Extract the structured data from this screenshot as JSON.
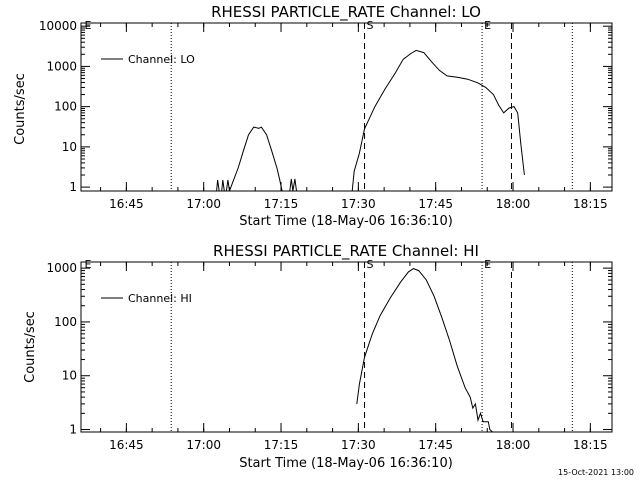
{
  "footer_date": "15-Oct-2021 13:00",
  "chart_data": [
    {
      "type": "line",
      "title": "RHESSI PARTICLE_RATE Channel: LO",
      "xlabel": "Start Time (18-May-06 16:36:10)",
      "ylabel": "Counts/sec",
      "yscale": "log",
      "x_unit": "minutes after 16:36:10",
      "xlim": [
        0,
        103
      ],
      "ylim": [
        0.8,
        12000
      ],
      "x_ticks": [
        {
          "t": 8.8,
          "label": "16:45"
        },
        {
          "t": 23.8,
          "label": "17:00"
        },
        {
          "t": 38.8,
          "label": "17:15"
        },
        {
          "t": 53.8,
          "label": "17:30"
        },
        {
          "t": 68.8,
          "label": "17:45"
        },
        {
          "t": 83.8,
          "label": "18:00"
        },
        {
          "t": 98.8,
          "label": "18:15"
        }
      ],
      "y_ticks": [
        {
          "v": 1,
          "label": "1"
        },
        {
          "v": 10,
          "label": "10"
        },
        {
          "v": 100,
          "label": "100"
        },
        {
          "v": 1000,
          "label": "1000"
        },
        {
          "v": 10000,
          "label": "10000"
        }
      ],
      "legend": {
        "label": "Channel: LO",
        "position": "top-left"
      },
      "markers": [
        {
          "label": "E",
          "t": 0.3,
          "style": "none"
        },
        {
          "label": "",
          "t": 17.5,
          "style": "dotted"
        },
        {
          "label": "S",
          "t": 55.0,
          "style": "dashed"
        },
        {
          "label": "E",
          "t": 77.8,
          "style": "dotted"
        },
        {
          "label": "",
          "t": 83.5,
          "style": "dashed"
        },
        {
          "label": "",
          "t": 95.3,
          "style": "dotted"
        }
      ],
      "series": [
        {
          "name": "Channel: LO",
          "segments": [
            [
              [
                26.3,
                0.8
              ],
              [
                26.5,
                1.5
              ],
              [
                26.8,
                0.8
              ]
            ],
            [
              [
                27.3,
                0.8
              ],
              [
                27.5,
                1.5
              ],
              [
                27.8,
                0.8
              ]
            ],
            [
              [
                28.2,
                0.8
              ],
              [
                28.5,
                1.5
              ],
              [
                28.8,
                0.8
              ],
              [
                29.3,
                1.2
              ],
              [
                30.5,
                3
              ],
              [
                31.5,
                8
              ],
              [
                32.5,
                20
              ],
              [
                33.5,
                31
              ],
              [
                34.5,
                29
              ],
              [
                35.0,
                31
              ],
              [
                36.0,
                20
              ],
              [
                37.0,
                8
              ],
              [
                38.0,
                3
              ],
              [
                38.5,
                1.6
              ],
              [
                39.0,
                0.8
              ]
            ],
            [
              [
                40.5,
                0.8
              ],
              [
                40.8,
                1.6
              ],
              [
                41.1,
                0.8
              ],
              [
                41.5,
                1.6
              ],
              [
                41.8,
                0.8
              ]
            ],
            [
              [
                52.6,
                0.8
              ],
              [
                53.0,
                2.5
              ],
              [
                54.0,
                7
              ],
              [
                55.0,
                28
              ],
              [
                57.0,
                100
              ],
              [
                59.0,
                280
              ],
              [
                61.0,
                700
              ],
              [
                62.5,
                1500
              ],
              [
                64.0,
                2100
              ],
              [
                65.0,
                2500
              ],
              [
                66.5,
                2200
              ],
              [
                68.0,
                1300
              ],
              [
                69.5,
                800
              ],
              [
                71.0,
                580
              ],
              [
                73.0,
                540
              ],
              [
                75.0,
                480
              ],
              [
                77.0,
                390
              ],
              [
                78.5,
                300
              ],
              [
                80.0,
                200
              ],
              [
                81.0,
                110
              ],
              [
                82.0,
                70
              ],
              [
                83.0,
                92
              ],
              [
                84.0,
                100
              ],
              [
                84.7,
                70
              ],
              [
                85.3,
                12
              ],
              [
                86.0,
                2
              ]
            ]
          ]
        }
      ]
    },
    {
      "type": "line",
      "title": "RHESSI PARTICLE_RATE Channel: HI",
      "xlabel": "Start Time (18-May-06 16:36:10)",
      "ylabel": "Counts/sec",
      "yscale": "log",
      "x_unit": "minutes after 16:36:10",
      "xlim": [
        0,
        103
      ],
      "ylim": [
        0.9,
        1300
      ],
      "x_ticks": [
        {
          "t": 8.8,
          "label": "16:45"
        },
        {
          "t": 23.8,
          "label": "17:00"
        },
        {
          "t": 38.8,
          "label": "17:15"
        },
        {
          "t": 53.8,
          "label": "17:30"
        },
        {
          "t": 68.8,
          "label": "17:45"
        },
        {
          "t": 83.8,
          "label": "18:00"
        },
        {
          "t": 98.8,
          "label": "18:15"
        }
      ],
      "y_ticks": [
        {
          "v": 1,
          "label": "1"
        },
        {
          "v": 10,
          "label": "10"
        },
        {
          "v": 100,
          "label": "100"
        },
        {
          "v": 1000,
          "label": "1000"
        }
      ],
      "legend": {
        "label": "Channel: HI",
        "position": "top-left"
      },
      "markers": [
        {
          "label": "E",
          "t": 0.3,
          "style": "none"
        },
        {
          "label": "",
          "t": 17.5,
          "style": "dotted"
        },
        {
          "label": "S",
          "t": 55.0,
          "style": "dashed"
        },
        {
          "label": "E",
          "t": 77.8,
          "style": "dotted"
        },
        {
          "label": "",
          "t": 83.5,
          "style": "dashed"
        },
        {
          "label": "",
          "t": 95.3,
          "style": "dotted"
        }
      ],
      "series": [
        {
          "name": "Channel: HI",
          "segments": [
            [
              [
                53.5,
                3
              ],
              [
                54.0,
                7
              ],
              [
                55.0,
                22
              ],
              [
                56.5,
                60
              ],
              [
                58.0,
                130
              ],
              [
                60.0,
                280
              ],
              [
                62.0,
                550
              ],
              [
                63.5,
                850
              ],
              [
                64.5,
                980
              ],
              [
                65.5,
                900
              ],
              [
                67.0,
                600
              ],
              [
                68.5,
                300
              ],
              [
                70.0,
                120
              ],
              [
                71.5,
                45
              ],
              [
                73.0,
                15
              ],
              [
                74.5,
                6
              ],
              [
                75.5,
                4
              ],
              [
                76.0,
                2.5
              ],
              [
                76.5,
                3
              ],
              [
                77.0,
                1.5
              ],
              [
                77.5,
                2
              ],
              [
                78.0,
                1.4
              ],
              [
                79.0,
                1.4
              ],
              [
                79.3,
                1.0
              ],
              [
                79.8,
                0.9
              ]
            ]
          ]
        }
      ]
    }
  ]
}
